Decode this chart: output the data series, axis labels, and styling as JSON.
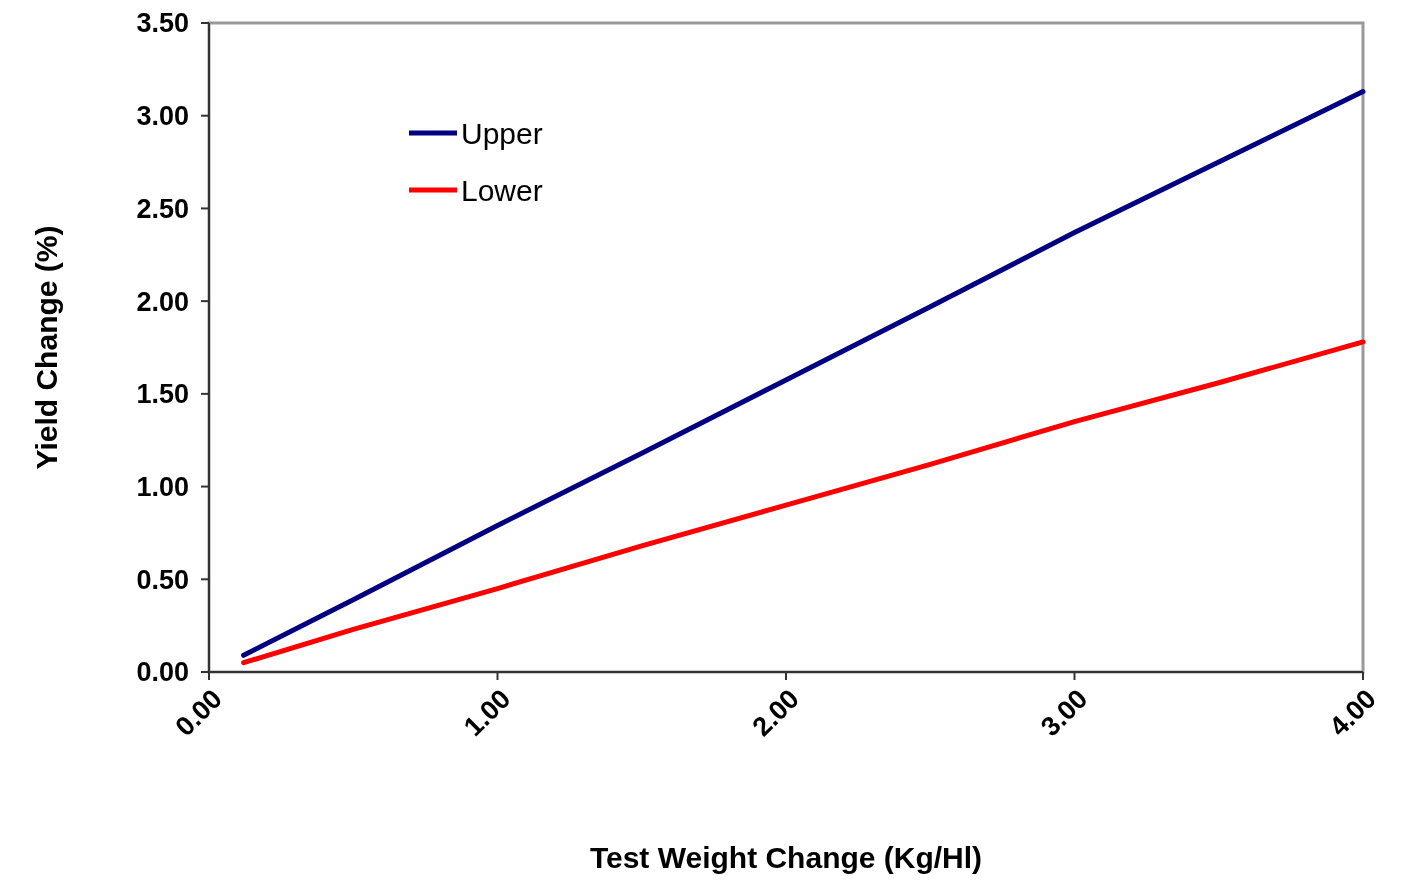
{
  "chart_data": {
    "type": "line",
    "xlabel": "Test Weight Change (Kg/Hl)",
    "ylabel": "Yield Change (%)",
    "xlim": [
      0,
      4
    ],
    "ylim": [
      0,
      3.5
    ],
    "xticks": [
      {
        "value": 0,
        "label": "0.00"
      },
      {
        "value": 1,
        "label": "1.00"
      },
      {
        "value": 2,
        "label": "2.00"
      },
      {
        "value": 3,
        "label": "3.00"
      },
      {
        "value": 4,
        "label": "4.00"
      }
    ],
    "yticks": [
      {
        "value": 0,
        "label": "0.00"
      },
      {
        "value": 0.5,
        "label": "0.50"
      },
      {
        "value": 1,
        "label": "1.00"
      },
      {
        "value": 1.5,
        "label": "1.50"
      },
      {
        "value": 2,
        "label": "2.00"
      },
      {
        "value": 2.5,
        "label": "2.50"
      },
      {
        "value": 3,
        "label": "3.00"
      },
      {
        "value": 3.5,
        "label": "3.50"
      }
    ],
    "grid": false,
    "legend": "top left",
    "marker": "none",
    "line_style": "solid",
    "series": [
      {
        "name": "Upper",
        "color": "#000080",
        "x": [
          0.12,
          0.5,
          1,
          1.5,
          2,
          2.5,
          3,
          3.5,
          4
        ],
        "values": [
          0.09,
          0.39,
          0.79,
          1.18,
          1.575,
          1.97,
          2.37,
          2.75,
          3.13
        ]
      },
      {
        "name": "Lower",
        "color": "#ff0000",
        "x": [
          0.12,
          0.5,
          1,
          1.5,
          2,
          2.5,
          3,
          3.5,
          4
        ],
        "values": [
          0.05,
          0.23,
          0.45,
          0.68,
          0.9,
          1.12,
          1.35,
          1.56,
          1.78
        ]
      }
    ]
  }
}
